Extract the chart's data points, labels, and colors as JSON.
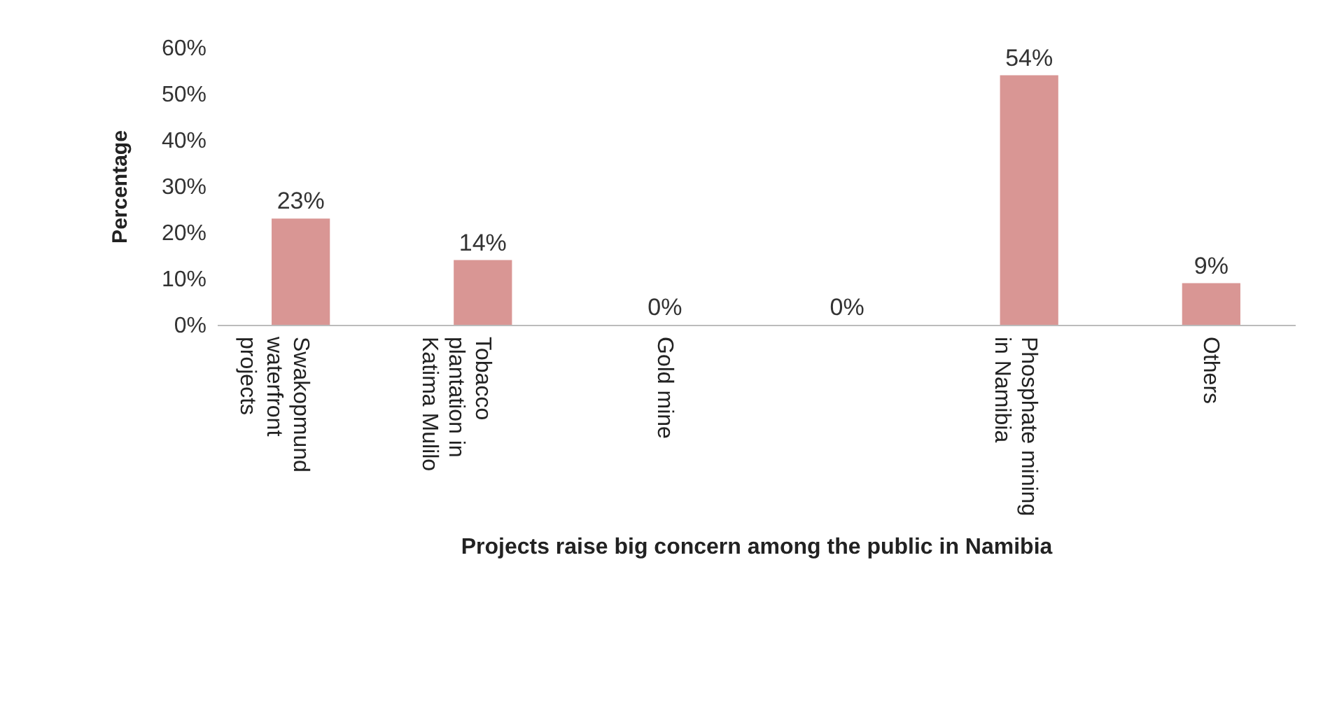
{
  "chart_data": {
    "type": "bar",
    "xlabel": "Projects raise big concern among the public in Namibia",
    "ylabel": "Percentage",
    "categories": [
      "Swakopmund waterfront projects",
      "Tobacco plantation in Katima Mulilo",
      "Gold mine",
      null,
      "Phosphate mining in Namibia",
      "Others"
    ],
    "values": [
      23,
      14,
      0,
      0,
      54,
      9
    ],
    "value_labels": [
      "23%",
      "14%",
      "0%",
      "0%",
      "54%",
      "9%"
    ],
    "color": "#d99694",
    "ylim": [
      0,
      60
    ],
    "yticks": [
      {
        "value": 0,
        "label": "0%"
      },
      {
        "value": 10,
        "label": "10%"
      },
      {
        "value": 20,
        "label": "20%"
      },
      {
        "value": 30,
        "label": "30%"
      },
      {
        "value": 40,
        "label": "40%"
      },
      {
        "value": 50,
        "label": "50%"
      },
      {
        "value": 60,
        "label": "60%"
      }
    ],
    "grid": false
  }
}
